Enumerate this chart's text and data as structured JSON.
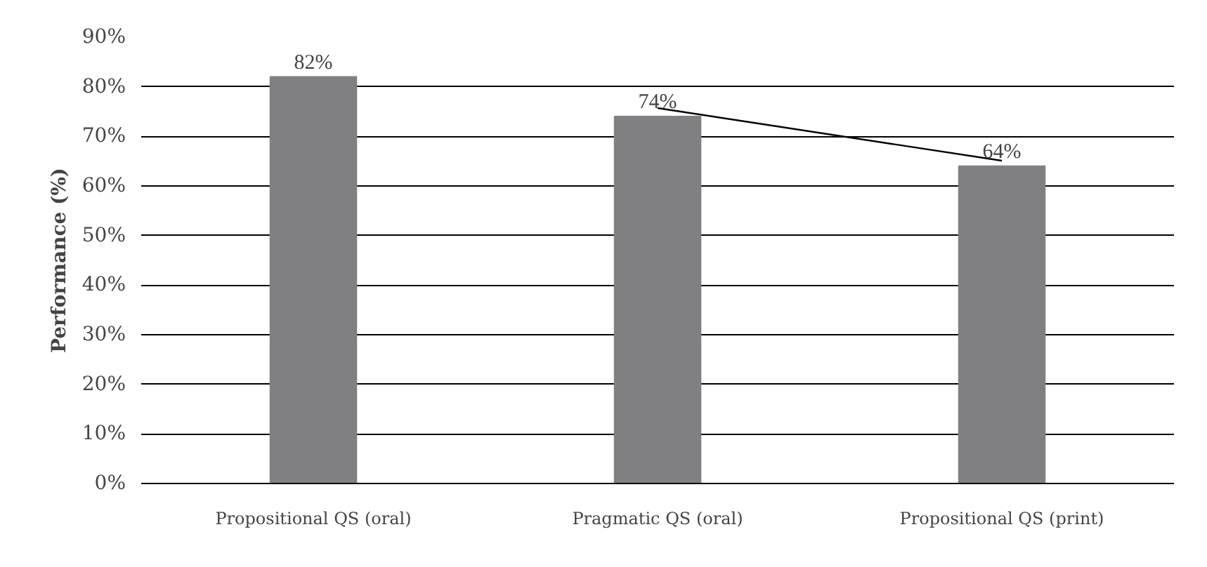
{
  "chart_data": {
    "type": "bar",
    "ylabel": "Performance (%)",
    "categories": [
      "Propositional QS (oral)",
      "Pragmatic QS (oral)",
      "Propositional QS (print)"
    ],
    "series": [
      {
        "color": "#808083",
        "values": [
          82,
          74,
          64
        ],
        "value_labels": [
          "82%",
          "74%",
          "64%"
        ]
      },
      {
        "type": "line",
        "color": "#000000",
        "values": [
          null,
          75.7,
          65.1
        ]
      }
    ],
    "ylim": [
      0,
      90
    ],
    "yticks": [
      {
        "value": 0,
        "label": "0%"
      },
      {
        "value": 10,
        "label": "10%"
      },
      {
        "value": 20,
        "label": "20%"
      },
      {
        "value": 30,
        "label": "30%"
      },
      {
        "value": 40,
        "label": "40%"
      },
      {
        "value": 50,
        "label": "50%"
      },
      {
        "value": 60,
        "label": "60%"
      },
      {
        "value": 70,
        "label": "70%"
      },
      {
        "value": 80,
        "label": "80%"
      },
      {
        "value": 90,
        "label": "90%"
      }
    ],
    "grid": "y"
  }
}
